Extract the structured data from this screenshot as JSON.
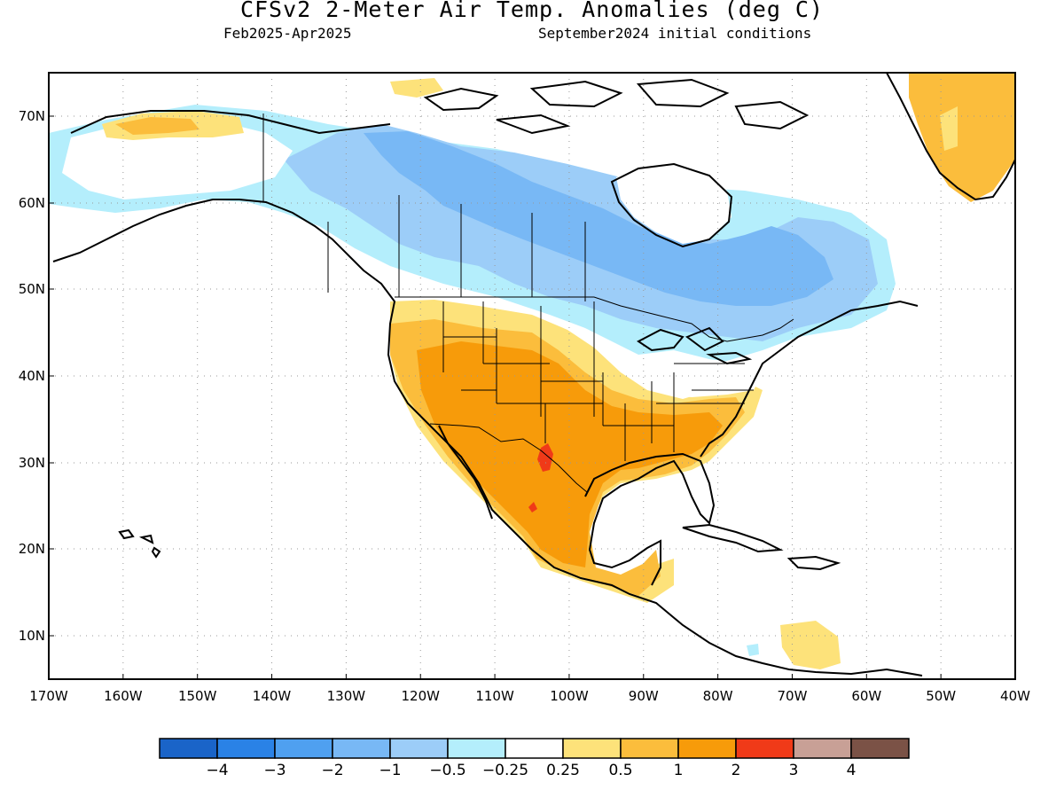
{
  "title": "CFSv2 2-Meter Air Temp. Anomalies (deg C)",
  "period": "Feb2025-Apr2025",
  "initial_conditions": "September2024 initial conditions",
  "lat_labels": [
    "70N",
    "60N",
    "50N",
    "40N",
    "30N",
    "20N",
    "10N"
  ],
  "lon_labels": [
    "170W",
    "160W",
    "150W",
    "140W",
    "130W",
    "120W",
    "110W",
    "100W",
    "90W",
    "80W",
    "70W",
    "60W",
    "50W",
    "40W"
  ],
  "colorbar": {
    "colors": [
      "#1a64c8",
      "#2a82e6",
      "#4fa0f0",
      "#78b8f5",
      "#9ccdf8",
      "#b4eefc",
      "#ffffff",
      "#fde27a",
      "#fbbd3c",
      "#f79b0a",
      "#f03a18",
      "#c8a096",
      "#7b5246"
    ],
    "labels": [
      "−4",
      "−3",
      "−2",
      "−1",
      "−0.5",
      "−0.25",
      "0.25",
      "0.5",
      "1",
      "2",
      "3",
      "4"
    ]
  }
}
